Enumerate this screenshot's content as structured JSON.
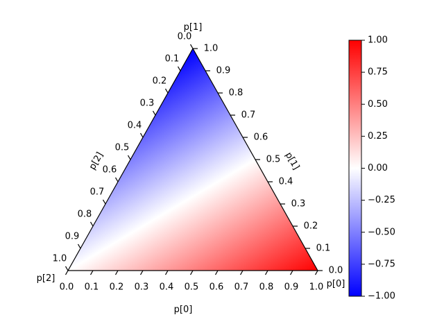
{
  "chart_data": {
    "type": "heatmap",
    "subtype": "ternary",
    "title": "",
    "axes": {
      "bottom": {
        "label": "p[0]",
        "ticks": [
          "0.0",
          "0.1",
          "0.2",
          "0.3",
          "0.4",
          "0.5",
          "0.6",
          "0.7",
          "0.8",
          "0.9",
          "1.0"
        ]
      },
      "right": {
        "label": "p[1]",
        "ticks": [
          "0.0",
          "0.1",
          "0.2",
          "0.3",
          "0.4",
          "0.5",
          "0.6",
          "0.7",
          "0.8",
          "0.9",
          "1.0"
        ]
      },
      "left": {
        "label": "p[2]",
        "ticks": [
          "0.0",
          "0.1",
          "0.2",
          "0.3",
          "0.4",
          "0.5",
          "0.6",
          "0.7",
          "0.8",
          "0.9",
          "1.0"
        ]
      }
    },
    "corner_labels": {
      "top": "p[1]",
      "bottom_right": "p[0]",
      "bottom_left": "p[2]"
    },
    "field": {
      "expression": "p[0] - p[1]",
      "vmin": -1.0,
      "vmax": 1.0,
      "colormap": "bwr"
    },
    "colorbar": {
      "vmin": -1.0,
      "vmax": 1.0,
      "ticks": [
        1.0,
        0.75,
        0.5,
        0.25,
        0.0,
        -0.25,
        -0.5,
        -0.75,
        -1.0
      ],
      "tick_labels": [
        "1.00",
        "0.75",
        "0.50",
        "0.25",
        "0.00",
        "−0.25",
        "−0.50",
        "−0.75",
        "−1.00"
      ],
      "colors": {
        "min": "#0000ff",
        "mid": "#ffffff",
        "max": "#ff0000"
      }
    }
  }
}
